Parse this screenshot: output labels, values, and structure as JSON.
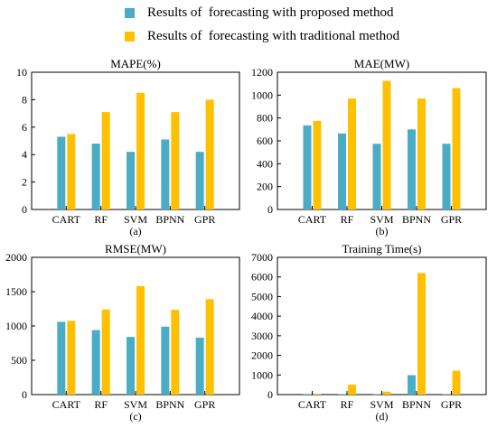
{
  "legend": [
    {
      "label": "Results of  forecasting with proposed method",
      "color": "#4bacc6"
    },
    {
      "label": "Results of  forecasting with traditional method",
      "color": "#ffc000"
    }
  ],
  "colors": {
    "proposed": "#4bacc6",
    "traditional": "#ffc000"
  },
  "chart_data": [
    {
      "type": "bar",
      "title": "MAPE(%)",
      "caption": "(a)",
      "categories": [
        "CART",
        "RF",
        "SVM",
        "BPNN",
        "GPR"
      ],
      "ylim": [
        0,
        10
      ],
      "yticks": [
        0,
        2,
        4,
        6,
        8,
        10
      ],
      "series": [
        {
          "key": "proposed",
          "values": [
            5.3,
            4.8,
            4.2,
            5.1,
            4.2
          ]
        },
        {
          "key": "traditional",
          "values": [
            5.5,
            7.1,
            8.5,
            7.1,
            8.0
          ]
        }
      ]
    },
    {
      "type": "bar",
      "title": "MAE(MW)",
      "caption": "(b)",
      "categories": [
        "CART",
        "RF",
        "SVM",
        "BPNN",
        "GPR"
      ],
      "ylim": [
        0,
        1200
      ],
      "yticks": [
        0,
        200,
        400,
        600,
        800,
        1000,
        1200
      ],
      "series": [
        {
          "key": "proposed",
          "values": [
            735,
            665,
            575,
            700,
            575
          ]
        },
        {
          "key": "traditional",
          "values": [
            775,
            970,
            1125,
            970,
            1060
          ]
        }
      ]
    },
    {
      "type": "bar",
      "title": "RMSE(MW)",
      "caption": "(c)",
      "categories": [
        "CART",
        "RF",
        "SVM",
        "BPNN",
        "GPR"
      ],
      "ylim": [
        0,
        2000
      ],
      "yticks": [
        0,
        500,
        1000,
        1500,
        2000
      ],
      "series": [
        {
          "key": "proposed",
          "values": [
            1060,
            940,
            840,
            990,
            830
          ]
        },
        {
          "key": "traditional",
          "values": [
            1075,
            1240,
            1580,
            1235,
            1390
          ]
        }
      ]
    },
    {
      "type": "bar",
      "title": "Training Time(s)",
      "caption": "(d)",
      "categories": [
        "CART",
        "RF",
        "SVM",
        "BPNN",
        "GPR"
      ],
      "ylim": [
        0,
        7000
      ],
      "yticks": [
        0,
        1000,
        2000,
        3000,
        4000,
        5000,
        6000,
        7000
      ],
      "series": [
        {
          "key": "proposed",
          "values": [
            30,
            25,
            20,
            990,
            20
          ]
        },
        {
          "key": "traditional",
          "values": [
            40,
            510,
            150,
            6200,
            1220
          ]
        }
      ]
    }
  ]
}
